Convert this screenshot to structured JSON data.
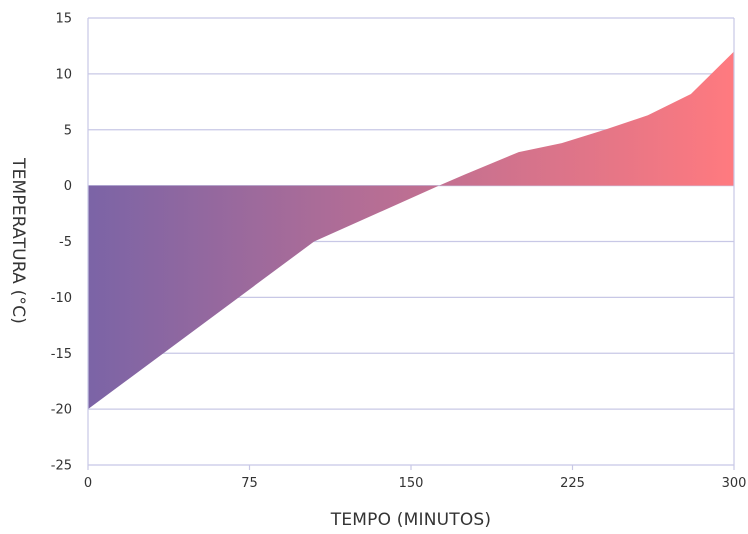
{
  "chart_data": {
    "type": "area",
    "title": "",
    "xlabel": "TEMPO (MINUTOS)",
    "ylabel": "TEMPERATURA (°C)",
    "xlim": [
      0,
      300
    ],
    "ylim": [
      -25,
      15
    ],
    "x_ticks": [
      0,
      75,
      150,
      225,
      300
    ],
    "y_ticks": [
      15,
      10,
      5,
      0,
      -5,
      -10,
      -15,
      -20,
      -25
    ],
    "grid": "horizontal",
    "baseline": 0,
    "series": [
      {
        "x": [
          0,
          105,
          163,
          175,
          200,
          220,
          240,
          260,
          280,
          300
        ],
        "y": [
          -20,
          -5,
          0,
          1,
          3,
          3.8,
          5,
          6.3,
          8.2,
          12
        ]
      }
    ],
    "gradient_colors": [
      "#7b64a6",
      "#ff7a7f"
    ],
    "grid_color": "#c8c8e6"
  }
}
